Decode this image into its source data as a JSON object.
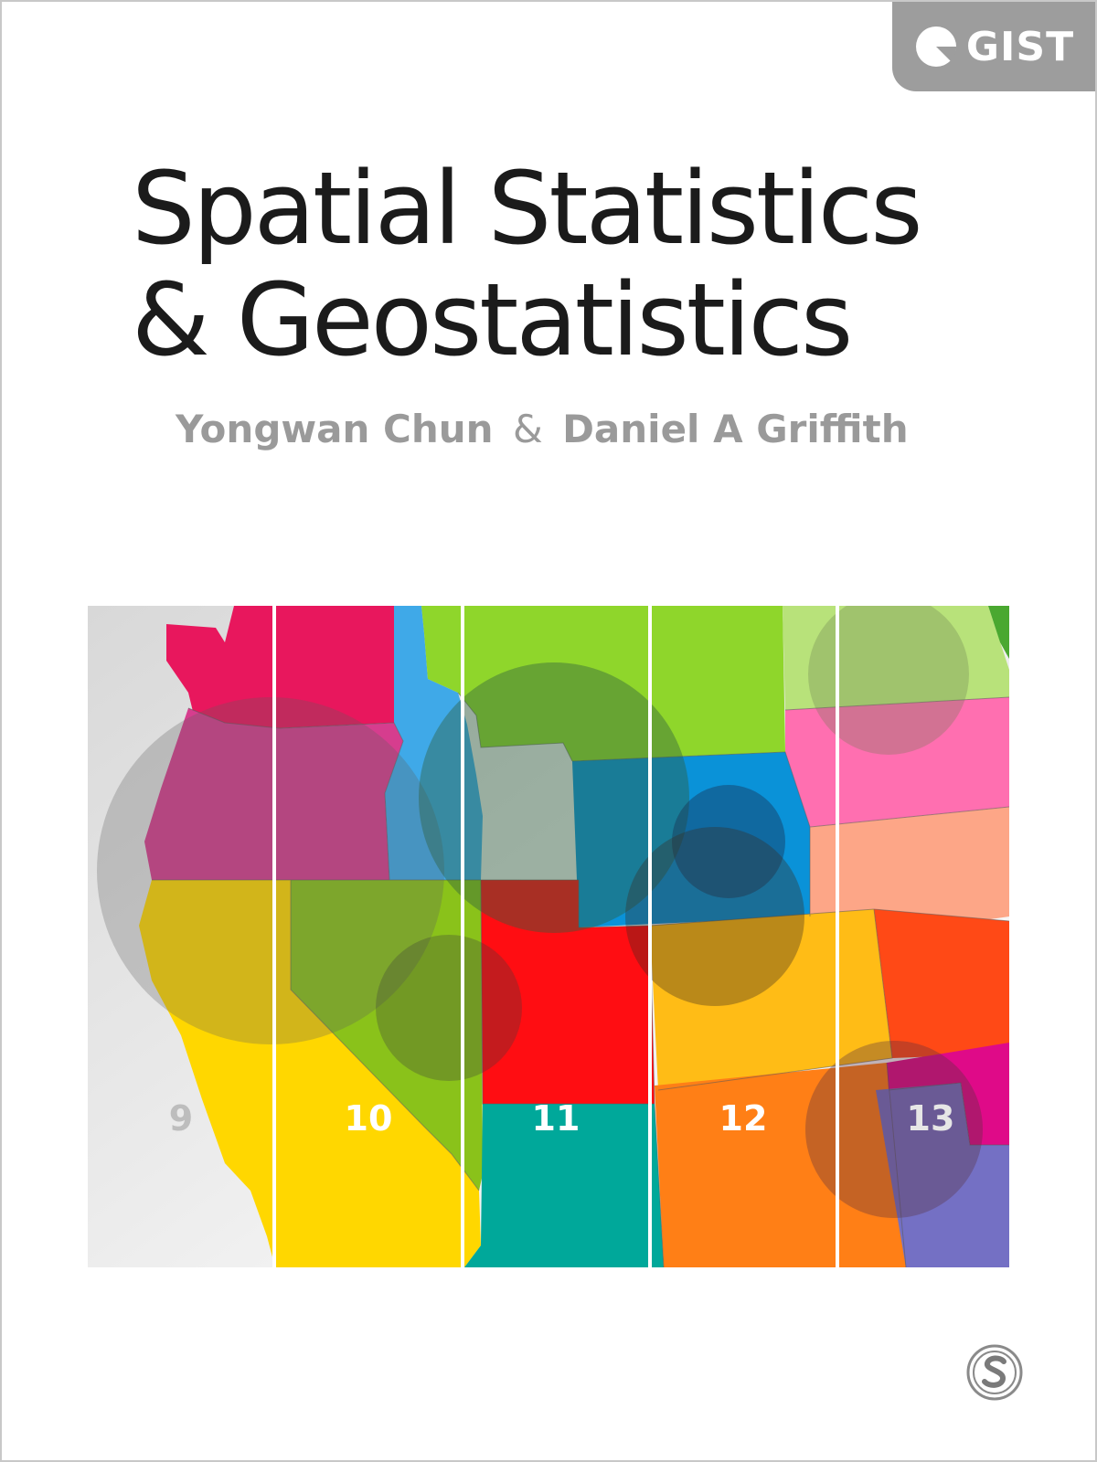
{
  "series": {
    "name": "GIST",
    "logo_icon": "gist-logo-icon",
    "badge_color": "#9d9d9d"
  },
  "book": {
    "title_line1": "Spatial Statistics",
    "title_line2": "& Geostatistics",
    "author1": "Yongwan Chun",
    "author_separator": "&",
    "author2": "Daniel A Griffith"
  },
  "cover_art": {
    "description_icon": "western-us-states-map-icon",
    "zone_labels": [
      "9",
      "10",
      "11",
      "12",
      "13"
    ],
    "zone_label_colors": [
      "#bdbdbd",
      "#ffffff",
      "#ffffff",
      "#ffffff",
      "#e6e6e6"
    ]
  },
  "publisher": {
    "logo_icon": "sage-logo-icon"
  },
  "colors": {
    "title": "#1b1b1b",
    "authors": "#9a9a9a",
    "background": "#ffffff"
  }
}
